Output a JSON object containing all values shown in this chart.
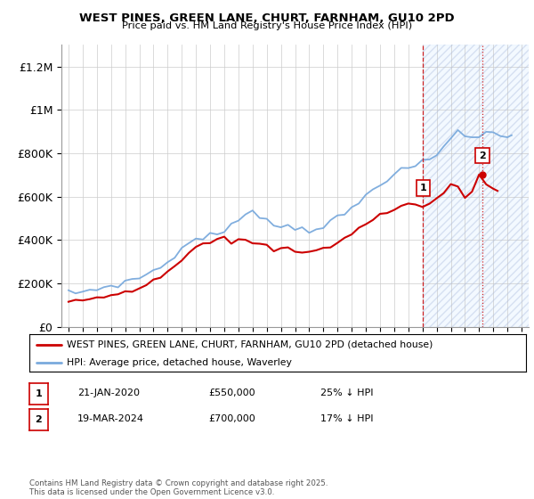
{
  "title": "WEST PINES, GREEN LANE, CHURT, FARNHAM, GU10 2PD",
  "subtitle": "Price paid vs. HM Land Registry's House Price Index (HPI)",
  "ylabel_ticks": [
    "£0",
    "£200K",
    "£400K",
    "£600K",
    "£800K",
    "£1M",
    "£1.2M"
  ],
  "ytick_values": [
    0,
    200000,
    400000,
    600000,
    800000,
    1000000,
    1200000
  ],
  "ylim": [
    0,
    1300000
  ],
  "xlim_start": 1994.5,
  "xlim_end": 2027.5,
  "marker1_x": 2020.05,
  "marker1_y": 550000,
  "marker1_label": "1",
  "marker2_x": 2024.22,
  "marker2_y": 700000,
  "marker2_label": "2",
  "legend_line1": "WEST PINES, GREEN LANE, CHURT, FARNHAM, GU10 2PD (detached house)",
  "legend_line2": "HPI: Average price, detached house, Waverley",
  "info1_label": "1",
  "info1_date": "21-JAN-2020",
  "info1_price": "£550,000",
  "info1_hpi": "25% ↓ HPI",
  "info2_label": "2",
  "info2_date": "19-MAR-2024",
  "info2_price": "£700,000",
  "info2_hpi": "17% ↓ HPI",
  "copyright_text": "Contains HM Land Registry data © Crown copyright and database right 2025.\nThis data is licensed under the Open Government Licence v3.0.",
  "line_color_red": "#cc0000",
  "line_color_blue": "#7aaadd",
  "marker_vline_color": "#cc0000",
  "shaded_fill_color": "#ddeeff",
  "background_color": "#ffffff",
  "grid_color": "#cccccc",
  "hpi_t": [
    1995,
    1995.5,
    1996,
    1996.5,
    1997,
    1997.5,
    1998,
    1998.5,
    1999,
    1999.5,
    2000,
    2000.5,
    2001,
    2001.5,
    2002,
    2002.5,
    2003,
    2003.5,
    2004,
    2004.5,
    2005,
    2005.5,
    2006,
    2006.5,
    2007,
    2007.5,
    2008,
    2008.5,
    2009,
    2009.5,
    2010,
    2010.5,
    2011,
    2011.5,
    2012,
    2012.5,
    2013,
    2013.5,
    2014,
    2014.5,
    2015,
    2015.5,
    2016,
    2016.5,
    2017,
    2017.5,
    2018,
    2018.5,
    2019,
    2019.5,
    2020,
    2020.5,
    2021,
    2021.5,
    2022,
    2022.5,
    2023,
    2023.5,
    2024,
    2024.5,
    2025,
    2025.5,
    2026,
    2026.3
  ],
  "hpi_v": [
    155000,
    158000,
    162000,
    168000,
    175000,
    183000,
    190000,
    196000,
    205000,
    216000,
    228000,
    243000,
    258000,
    274000,
    300000,
    330000,
    360000,
    385000,
    405000,
    415000,
    420000,
    425000,
    440000,
    460000,
    490000,
    530000,
    540000,
    520000,
    490000,
    470000,
    465000,
    462000,
    460000,
    455000,
    450000,
    455000,
    465000,
    480000,
    500000,
    520000,
    545000,
    570000,
    605000,
    640000,
    665000,
    685000,
    700000,
    715000,
    730000,
    745000,
    755000,
    770000,
    790000,
    830000,
    870000,
    910000,
    890000,
    870000,
    875000,
    890000,
    900000,
    895000,
    875000,
    870000
  ],
  "red_t": [
    1995,
    1995.5,
    1996,
    1996.5,
    1997,
    1997.5,
    1998,
    1998.5,
    1999,
    1999.5,
    2000,
    2000.5,
    2001,
    2001.5,
    2002,
    2002.5,
    2003,
    2003.5,
    2004,
    2004.5,
    2005,
    2005.5,
    2006,
    2006.5,
    2007,
    2007.5,
    2008,
    2008.5,
    2009,
    2009.5,
    2010,
    2010.5,
    2011,
    2011.5,
    2012,
    2012.5,
    2013,
    2013.5,
    2014,
    2014.5,
    2015,
    2015.5,
    2016,
    2016.5,
    2017,
    2017.5,
    2018,
    2018.5,
    2019,
    2019.5,
    2020,
    2020.5,
    2021,
    2021.5,
    2022,
    2022.5,
    2023,
    2023.5,
    2024,
    2024.5,
    2025,
    2025.3
  ],
  "red_v": [
    120000,
    120000,
    122000,
    125000,
    128000,
    132000,
    138000,
    145000,
    155000,
    168000,
    182000,
    200000,
    215000,
    228000,
    250000,
    278000,
    305000,
    328000,
    365000,
    385000,
    392000,
    398000,
    410000,
    390000,
    405000,
    400000,
    395000,
    385000,
    370000,
    358000,
    360000,
    355000,
    350000,
    345000,
    345000,
    350000,
    362000,
    375000,
    392000,
    410000,
    428000,
    450000,
    475000,
    495000,
    510000,
    525000,
    545000,
    558000,
    570000,
    560000,
    550000,
    570000,
    595000,
    620000,
    650000,
    635000,
    595000,
    620000,
    700000,
    660000,
    640000,
    630000
  ]
}
